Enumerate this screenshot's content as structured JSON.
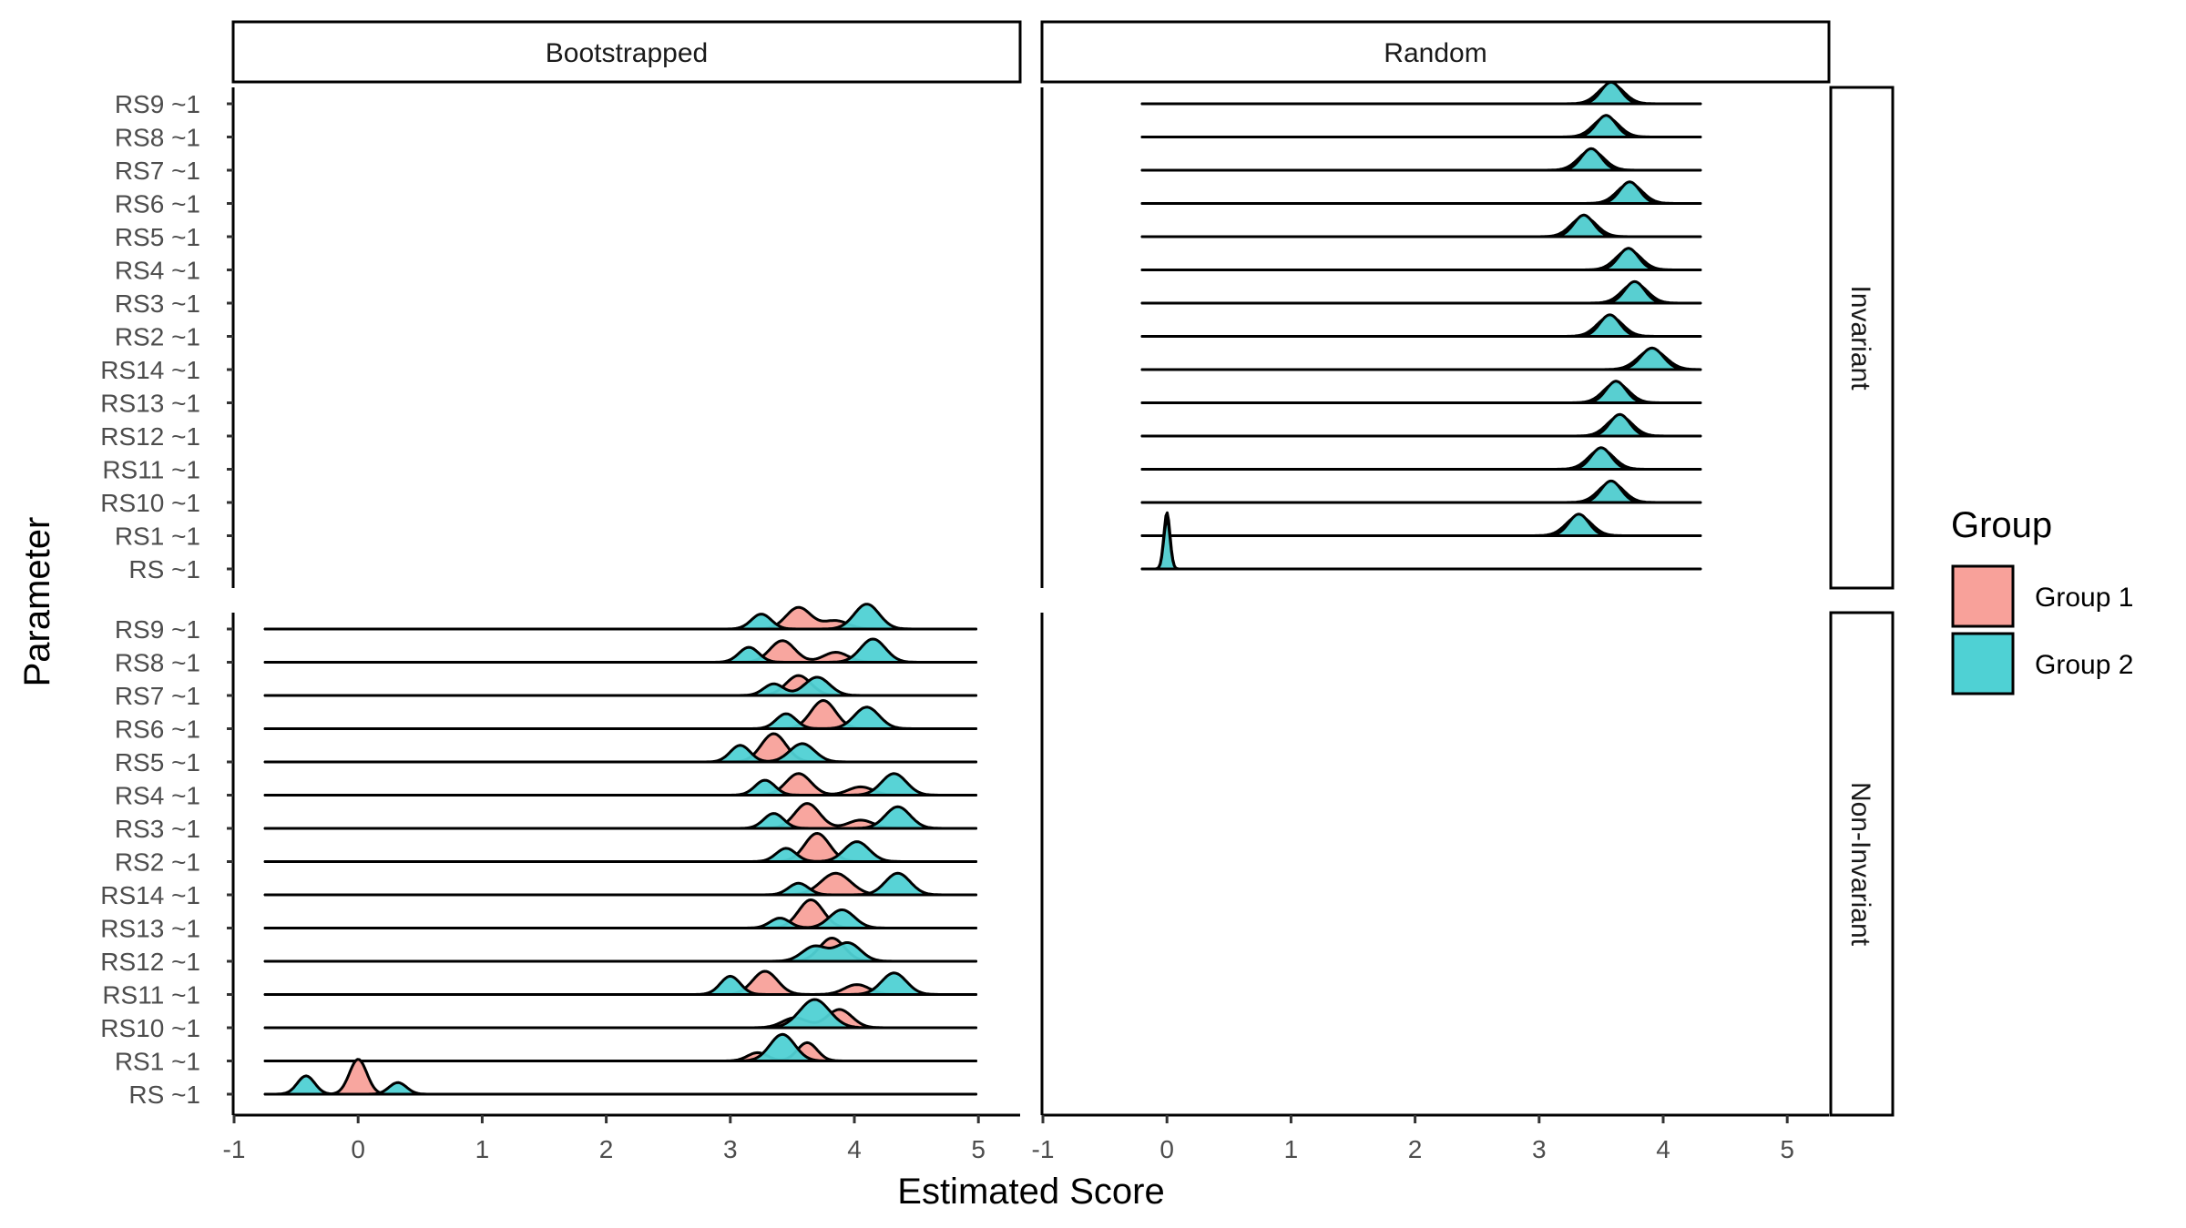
{
  "chart_data": {
    "type": "ridgeline",
    "xlabel": "Estimated Score",
    "ylabel": "Parameter",
    "xlim": [
      -1,
      5
    ],
    "x_ticks": [
      "-1",
      "0",
      "1",
      "2",
      "3",
      "4",
      "5"
    ],
    "columns": [
      "Bootstrapped",
      "Random"
    ],
    "rows": [
      "Invariant",
      "Non-Invariant"
    ],
    "parameters": [
      "RS9 ~1",
      "RS8 ~1",
      "RS7 ~1",
      "RS6 ~1",
      "RS5 ~1",
      "RS4 ~1",
      "RS3 ~1",
      "RS2 ~1",
      "RS14 ~1",
      "RS13 ~1",
      "RS12 ~1",
      "RS11 ~1",
      "RS10 ~1",
      "RS1 ~1",
      "RS ~1"
    ],
    "legend": {
      "title": "Group",
      "position": "right",
      "entries": [
        {
          "name": "Group 1",
          "color": "#F8A19A"
        },
        {
          "name": "Group 2",
          "color": "#4FD1D4"
        }
      ]
    },
    "panels": [
      {
        "column": "Random",
        "row": "Invariant",
        "baseline_range": [
          -0.2,
          4.3
        ],
        "densities": {
          "RS9 ~1": {
            "g1": [
              [
                3.58,
                0.1,
                0.6
              ]
            ],
            "g2": [
              [
                3.58,
                0.08,
                0.65
              ]
            ]
          },
          "RS8 ~1": {
            "g1": [
              [
                3.54,
                0.1,
                0.6
              ]
            ],
            "g2": [
              [
                3.54,
                0.08,
                0.65
              ]
            ]
          },
          "RS7 ~1": {
            "g1": [
              [
                3.42,
                0.1,
                0.6
              ]
            ],
            "g2": [
              [
                3.42,
                0.08,
                0.65
              ]
            ]
          },
          "RS6 ~1": {
            "g1": [
              [
                3.73,
                0.1,
                0.6
              ]
            ],
            "g2": [
              [
                3.73,
                0.08,
                0.65
              ]
            ]
          },
          "RS5 ~1": {
            "g1": [
              [
                3.36,
                0.1,
                0.6
              ]
            ],
            "g2": [
              [
                3.36,
                0.08,
                0.65
              ]
            ]
          },
          "RS4 ~1": {
            "g1": [
              [
                3.72,
                0.1,
                0.6
              ]
            ],
            "g2": [
              [
                3.72,
                0.08,
                0.65
              ]
            ]
          },
          "RS3 ~1": {
            "g1": [
              [
                3.77,
                0.1,
                0.6
              ]
            ],
            "g2": [
              [
                3.77,
                0.08,
                0.65
              ]
            ]
          },
          "RS2 ~1": {
            "g1": [
              [
                3.57,
                0.1,
                0.6
              ]
            ],
            "g2": [
              [
                3.57,
                0.08,
                0.65
              ]
            ]
          },
          "RS14 ~1": {
            "g1": [
              [
                3.91,
                0.11,
                0.6
              ]
            ],
            "g2": [
              [
                3.91,
                0.09,
                0.65
              ]
            ]
          },
          "RS13 ~1": {
            "g1": [
              [
                3.62,
                0.1,
                0.6
              ]
            ],
            "g2": [
              [
                3.62,
                0.08,
                0.65
              ]
            ]
          },
          "RS12 ~1": {
            "g1": [
              [
                3.65,
                0.1,
                0.6
              ]
            ],
            "g2": [
              [
                3.65,
                0.08,
                0.65
              ]
            ]
          },
          "RS11 ~1": {
            "g1": [
              [
                3.5,
                0.1,
                0.6
              ]
            ],
            "g2": [
              [
                3.5,
                0.08,
                0.65
              ]
            ]
          },
          "RS10 ~1": {
            "g1": [
              [
                3.58,
                0.1,
                0.6
              ]
            ],
            "g2": [
              [
                3.58,
                0.08,
                0.65
              ]
            ]
          },
          "RS1 ~1": {
            "g1": [
              [
                3.32,
                0.1,
                0.6
              ]
            ],
            "g2": [
              [
                3.32,
                0.08,
                0.65
              ]
            ]
          },
          "RS ~1": {
            "g1": [
              [
                0.0,
                0.025,
                1.7
              ]
            ],
            "g2": [
              [
                0.0,
                0.025,
                1.5
              ]
            ]
          }
        }
      },
      {
        "column": "Bootstrapped",
        "row": "Non-Invariant",
        "baseline_range": [
          -0.75,
          4.98
        ],
        "densities": {
          "RS9 ~1": {
            "g1": [
              [
                3.55,
                0.1,
                0.65
              ],
              [
                3.85,
                0.1,
                0.25
              ]
            ],
            "g2": [
              [
                3.25,
                0.08,
                0.45
              ],
              [
                4.1,
                0.1,
                0.75
              ]
            ]
          },
          "RS8 ~1": {
            "g1": [
              [
                3.42,
                0.1,
                0.65
              ],
              [
                3.85,
                0.1,
                0.3
              ]
            ],
            "g2": [
              [
                3.15,
                0.08,
                0.45
              ],
              [
                4.15,
                0.1,
                0.7
              ]
            ]
          },
          "RS7 ~1": {
            "g1": [
              [
                3.55,
                0.1,
                0.6
              ]
            ],
            "g2": [
              [
                3.35,
                0.08,
                0.35
              ],
              [
                3.7,
                0.1,
                0.55
              ]
            ]
          },
          "RS6 ~1": {
            "g1": [
              [
                3.75,
                0.1,
                0.85
              ]
            ],
            "g2": [
              [
                3.45,
                0.08,
                0.45
              ],
              [
                4.1,
                0.1,
                0.65
              ]
            ]
          },
          "RS5 ~1": {
            "g1": [
              [
                3.35,
                0.1,
                0.85
              ]
            ],
            "g2": [
              [
                3.08,
                0.08,
                0.5
              ],
              [
                3.58,
                0.1,
                0.55
              ]
            ]
          },
          "RS4 ~1": {
            "g1": [
              [
                3.55,
                0.1,
                0.65
              ],
              [
                4.05,
                0.1,
                0.25
              ]
            ],
            "g2": [
              [
                3.28,
                0.08,
                0.45
              ],
              [
                4.32,
                0.1,
                0.65
              ]
            ]
          },
          "RS3 ~1": {
            "g1": [
              [
                3.62,
                0.1,
                0.75
              ],
              [
                4.05,
                0.1,
                0.25
              ]
            ],
            "g2": [
              [
                3.35,
                0.08,
                0.45
              ],
              [
                4.35,
                0.1,
                0.65
              ]
            ]
          },
          "RS2 ~1": {
            "g1": [
              [
                3.7,
                0.1,
                0.85
              ]
            ],
            "g2": [
              [
                3.45,
                0.08,
                0.4
              ],
              [
                4.02,
                0.1,
                0.6
              ]
            ]
          },
          "RS14 ~1": {
            "g1": [
              [
                3.85,
                0.12,
                0.65
              ]
            ],
            "g2": [
              [
                3.55,
                0.08,
                0.35
              ],
              [
                4.35,
                0.1,
                0.65
              ]
            ]
          },
          "RS13 ~1": {
            "g1": [
              [
                3.65,
                0.1,
                0.85
              ]
            ],
            "g2": [
              [
                3.4,
                0.08,
                0.3
              ],
              [
                3.9,
                0.1,
                0.55
              ]
            ]
          },
          "RS12 ~1": {
            "g1": [
              [
                3.82,
                0.1,
                0.7
              ]
            ],
            "g2": [
              [
                3.68,
                0.1,
                0.45
              ],
              [
                3.95,
                0.1,
                0.55
              ]
            ]
          },
          "RS11 ~1": {
            "g1": [
              [
                3.28,
                0.1,
                0.7
              ],
              [
                4.02,
                0.1,
                0.3
              ]
            ],
            "g2": [
              [
                3.0,
                0.08,
                0.55
              ],
              [
                4.32,
                0.1,
                0.65
              ]
            ]
          },
          "RS10 ~1": {
            "g1": [
              [
                3.52,
                0.1,
                0.3
              ],
              [
                3.88,
                0.1,
                0.55
              ]
            ],
            "g2": [
              [
                3.68,
                0.12,
                0.85
              ]
            ]
          },
          "RS1 ~1": {
            "g1": [
              [
                3.22,
                0.08,
                0.25
              ],
              [
                3.62,
                0.08,
                0.55
              ]
            ],
            "g2": [
              [
                3.42,
                0.1,
                0.8
              ]
            ]
          },
          "RS ~1": {
            "g1": [
              [
                0.0,
                0.07,
                1.05
              ]
            ],
            "g2": [
              [
                -0.42,
                0.07,
                0.55
              ],
              [
                0.32,
                0.07,
                0.35
              ]
            ]
          }
        }
      }
    ]
  }
}
